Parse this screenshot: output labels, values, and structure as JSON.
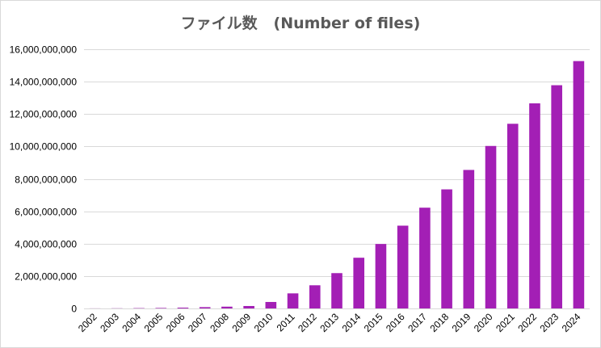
{
  "chart_data": {
    "type": "bar",
    "title": "ファイル数   (Number of files)",
    "xlabel": "",
    "ylabel": "",
    "ylim": [
      0,
      16000000000
    ],
    "yticks": [
      0,
      2000000000,
      4000000000,
      6000000000,
      8000000000,
      10000000000,
      12000000000,
      14000000000,
      16000000000
    ],
    "ytick_labels": [
      "0",
      "2,000,000,000",
      "4,000,000,000",
      "6,000,000,000",
      "8,000,000,000",
      "10,000,000,000",
      "12,000,000,000",
      "14,000,000,000",
      "16,000,000,000"
    ],
    "categories": [
      "2002",
      "2003",
      "2004",
      "2005",
      "2006",
      "2007",
      "2008",
      "2009",
      "2010",
      "2011",
      "2012",
      "2013",
      "2014",
      "2015",
      "2016",
      "2017",
      "2018",
      "2019",
      "2020",
      "2021",
      "2022",
      "2023",
      "2024"
    ],
    "values": [
      5000000,
      10000000,
      20000000,
      30000000,
      50000000,
      80000000,
      110000000,
      150000000,
      400000000,
      930000000,
      1430000000,
      2180000000,
      3130000000,
      3980000000,
      5110000000,
      6220000000,
      7350000000,
      8550000000,
      10030000000,
      11400000000,
      12660000000,
      13780000000,
      15270000000
    ],
    "colors": {
      "bar": "#a31fb5",
      "grid": "#d9d9d9",
      "axis": "#d9d9d9"
    },
    "grid": true,
    "legend": "none"
  }
}
